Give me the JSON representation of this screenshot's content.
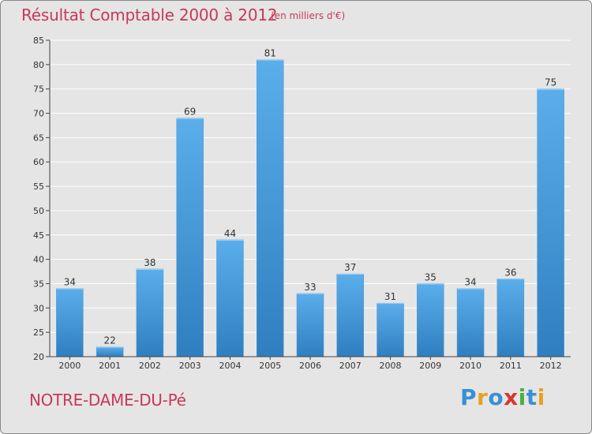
{
  "header": {
    "title": "Résultat Comptable 2000 à 2012",
    "subtitle": "(en milliers d'€)"
  },
  "footer": {
    "place": "NOTRE-DAME-DU-Pé",
    "brand": "Proxiti",
    "brand_letters": [
      {
        "char": "P",
        "color": "#3a8fd6"
      },
      {
        "char": "r",
        "color": "#e8a21a"
      },
      {
        "char": "o",
        "color": "#3a8fd6"
      },
      {
        "char": "x",
        "color": "#d8362e"
      },
      {
        "char": "i",
        "color": "#4caf3e"
      },
      {
        "char": "t",
        "color": "#3a8fd6"
      },
      {
        "char": "i",
        "color": "#e8a21a"
      }
    ]
  },
  "colors": {
    "title": "#c8385a",
    "bar_light": "#5aaeea",
    "bar_dark": "#2f7fc0",
    "grid": "#ffffff",
    "axis": "#444444"
  },
  "chart_data": {
    "type": "bar",
    "title": "Résultat Comptable 2000 à 2012",
    "subtitle": "(en milliers d'€)",
    "xlabel": "",
    "ylabel": "",
    "categories": [
      "2000",
      "2001",
      "2002",
      "2003",
      "2004",
      "2005",
      "2006",
      "2007",
      "2008",
      "2009",
      "2010",
      "2011",
      "2012"
    ],
    "values": [
      34,
      22,
      38,
      69,
      44,
      81,
      33,
      37,
      31,
      35,
      34,
      36,
      75
    ],
    "ylim": [
      20,
      85
    ],
    "yticks": [
      20,
      25,
      30,
      35,
      40,
      45,
      50,
      55,
      60,
      65,
      70,
      75,
      80,
      85
    ],
    "grid": true,
    "legend": "none"
  }
}
